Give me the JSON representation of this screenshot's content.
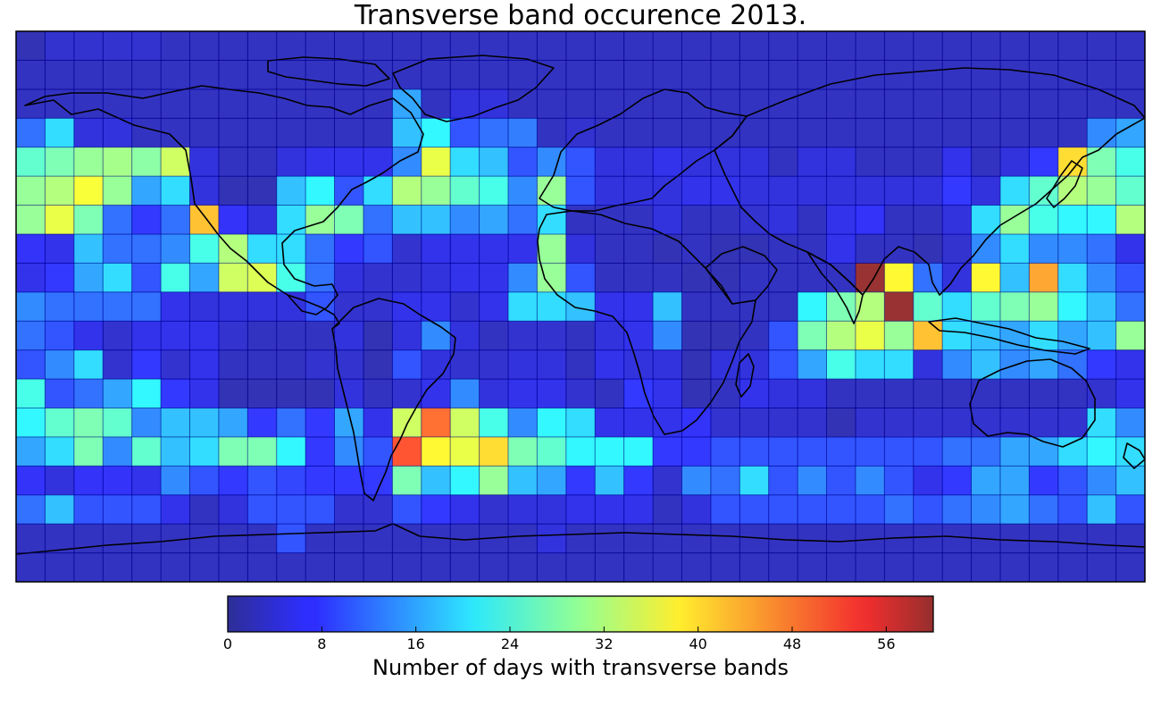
{
  "title": "Transverse band occurence 2013.",
  "colorbar": {
    "label": "Number of days with transverse bands",
    "min": 0,
    "max": 60,
    "ticks": [
      "0",
      "8",
      "16",
      "24",
      "32",
      "40",
      "48",
      "56"
    ]
  },
  "chart_data": {
    "type": "heatmap",
    "title": "Transverse band occurence 2013.",
    "grid": {
      "rows": 19,
      "cols": 39,
      "extent_lon": [
        -180,
        180
      ],
      "extent_lat": [
        -90,
        90
      ]
    },
    "colormap": "jet",
    "values": [
      [
        2,
        4,
        4,
        4,
        4,
        3,
        3,
        3,
        3,
        3,
        3,
        3,
        3,
        3,
        3,
        3,
        3,
        3,
        3,
        3,
        3,
        3,
        3,
        3,
        3,
        3,
        3,
        3,
        3,
        3,
        3,
        3,
        3,
        3,
        3,
        3,
        3,
        3,
        3
      ],
      [
        3,
        3,
        3,
        3,
        3,
        3,
        3,
        3,
        3,
        3,
        3,
        3,
        3,
        3,
        3,
        3,
        3,
        3,
        3,
        3,
        3,
        3,
        3,
        3,
        3,
        3,
        3,
        3,
        3,
        3,
        3,
        3,
        3,
        3,
        3,
        3,
        3,
        3,
        3
      ],
      [
        3,
        3,
        3,
        3,
        3,
        3,
        3,
        3,
        3,
        3,
        3,
        3,
        3,
        16,
        3,
        5,
        5,
        3,
        3,
        3,
        3,
        3,
        3,
        3,
        3,
        3,
        3,
        3,
        3,
        3,
        3,
        3,
        3,
        3,
        3,
        3,
        3,
        3,
        3
      ],
      [
        12,
        20,
        5,
        5,
        3,
        3,
        3,
        3,
        3,
        3,
        3,
        3,
        3,
        18,
        22,
        10,
        12,
        13,
        3,
        4,
        3,
        3,
        3,
        3,
        3,
        3,
        3,
        3,
        3,
        3,
        3,
        3,
        3,
        3,
        3,
        3,
        3,
        14,
        16
      ],
      [
        26,
        28,
        30,
        31,
        29,
        34,
        5,
        3,
        3,
        5,
        6,
        6,
        6,
        14,
        36,
        20,
        18,
        10,
        14,
        10,
        5,
        5,
        6,
        5,
        5,
        5,
        3,
        5,
        5,
        3,
        3,
        3,
        6,
        3,
        5,
        8,
        40,
        28,
        24
      ],
      [
        30,
        32,
        37,
        30,
        16,
        20,
        5,
        2,
        2,
        18,
        22,
        10,
        20,
        32,
        30,
        26,
        24,
        14,
        30,
        10,
        5,
        5,
        5,
        6,
        6,
        5,
        5,
        5,
        5,
        5,
        5,
        5,
        8,
        5,
        20,
        26,
        32,
        30,
        26
      ],
      [
        30,
        36,
        28,
        12,
        8,
        12,
        42,
        7,
        5,
        20,
        30,
        28,
        12,
        18,
        18,
        14,
        16,
        12,
        20,
        3,
        3,
        3,
        5,
        3,
        3,
        4,
        5,
        3,
        6,
        7,
        3,
        3,
        5,
        20,
        30,
        24,
        22,
        22,
        32
      ],
      [
        7,
        6,
        18,
        12,
        12,
        14,
        24,
        32,
        20,
        20,
        12,
        8,
        10,
        4,
        6,
        6,
        6,
        6,
        30,
        5,
        3,
        3,
        2,
        3,
        2,
        2,
        3,
        3,
        6,
        3,
        3,
        2,
        4,
        14,
        20,
        14,
        14,
        12,
        6
      ],
      [
        6,
        8,
        16,
        20,
        10,
        24,
        16,
        34,
        35,
        24,
        12,
        5,
        4,
        4,
        5,
        6,
        6,
        14,
        30,
        10,
        3,
        3,
        3,
        2,
        2,
        3,
        3,
        3,
        3,
        60,
        38,
        12,
        5,
        38,
        18,
        44,
        20,
        14,
        10
      ],
      [
        14,
        12,
        12,
        12,
        12,
        6,
        5,
        5,
        5,
        5,
        10,
        4,
        4,
        6,
        6,
        4,
        6,
        20,
        20,
        18,
        6,
        6,
        18,
        3,
        3,
        3,
        3,
        22,
        28,
        32,
        60,
        26,
        20,
        26,
        28,
        30,
        22,
        18,
        12
      ],
      [
        12,
        10,
        6,
        4,
        6,
        6,
        6,
        4,
        3,
        3,
        3,
        5,
        2,
        5,
        14,
        5,
        3,
        4,
        4,
        3,
        5,
        6,
        14,
        2,
        2,
        3,
        10,
        28,
        32,
        36,
        30,
        42,
        20,
        18,
        16,
        20,
        16,
        18,
        30
      ],
      [
        10,
        14,
        20,
        4,
        8,
        4,
        6,
        3,
        3,
        3,
        4,
        4,
        2,
        10,
        5,
        4,
        4,
        5,
        5,
        3,
        6,
        5,
        5,
        2,
        5,
        5,
        10,
        16,
        24,
        20,
        20,
        5,
        14,
        18,
        14,
        16,
        12,
        8,
        6
      ],
      [
        24,
        10,
        12,
        16,
        22,
        8,
        6,
        2,
        2,
        2,
        2,
        5,
        3,
        4,
        6,
        14,
        5,
        6,
        6,
        4,
        3,
        8,
        6,
        2,
        3,
        6,
        5,
        5,
        3,
        3,
        3,
        3,
        3,
        3,
        3,
        3,
        3,
        4,
        6
      ],
      [
        22,
        26,
        28,
        26,
        14,
        18,
        18,
        16,
        8,
        12,
        8,
        16,
        6,
        34,
        48,
        34,
        24,
        14,
        22,
        20,
        6,
        6,
        6,
        7,
        4,
        4,
        4,
        4,
        2,
        4,
        4,
        4,
        4,
        4,
        4,
        4,
        4,
        20,
        14
      ],
      [
        16,
        20,
        28,
        14,
        26,
        18,
        20,
        28,
        28,
        22,
        8,
        14,
        10,
        50,
        38,
        36,
        40,
        28,
        26,
        22,
        22,
        22,
        8,
        8,
        10,
        10,
        10,
        10,
        10,
        10,
        10,
        10,
        12,
        12,
        16,
        16,
        20,
        22,
        20
      ],
      [
        7,
        5,
        7,
        7,
        6,
        14,
        10,
        8,
        10,
        9,
        8,
        8,
        8,
        28,
        18,
        22,
        30,
        18,
        16,
        8,
        18,
        8,
        4,
        14,
        12,
        20,
        10,
        14,
        10,
        14,
        10,
        6,
        8,
        16,
        16,
        8,
        10,
        14,
        18
      ],
      [
        12,
        18,
        10,
        10,
        10,
        6,
        3,
        5,
        10,
        10,
        10,
        4,
        4,
        10,
        8,
        6,
        4,
        5,
        5,
        6,
        6,
        6,
        3,
        5,
        10,
        10,
        10,
        10,
        10,
        10,
        12,
        10,
        12,
        14,
        16,
        12,
        10,
        18,
        10
      ],
      [
        3,
        3,
        3,
        3,
        3,
        3,
        3,
        3,
        3,
        10,
        3,
        3,
        3,
        3,
        3,
        3,
        3,
        3,
        5,
        3,
        3,
        3,
        3,
        3,
        3,
        3,
        3,
        3,
        3,
        3,
        3,
        3,
        3,
        3,
        3,
        3,
        3,
        3,
        3
      ],
      [
        3,
        3,
        3,
        3,
        3,
        3,
        3,
        3,
        3,
        3,
        3,
        3,
        3,
        3,
        3,
        3,
        3,
        3,
        3,
        3,
        3,
        3,
        3,
        3,
        3,
        3,
        3,
        3,
        3,
        3,
        3,
        3,
        3,
        3,
        3,
        3,
        3,
        3,
        3
      ]
    ]
  }
}
